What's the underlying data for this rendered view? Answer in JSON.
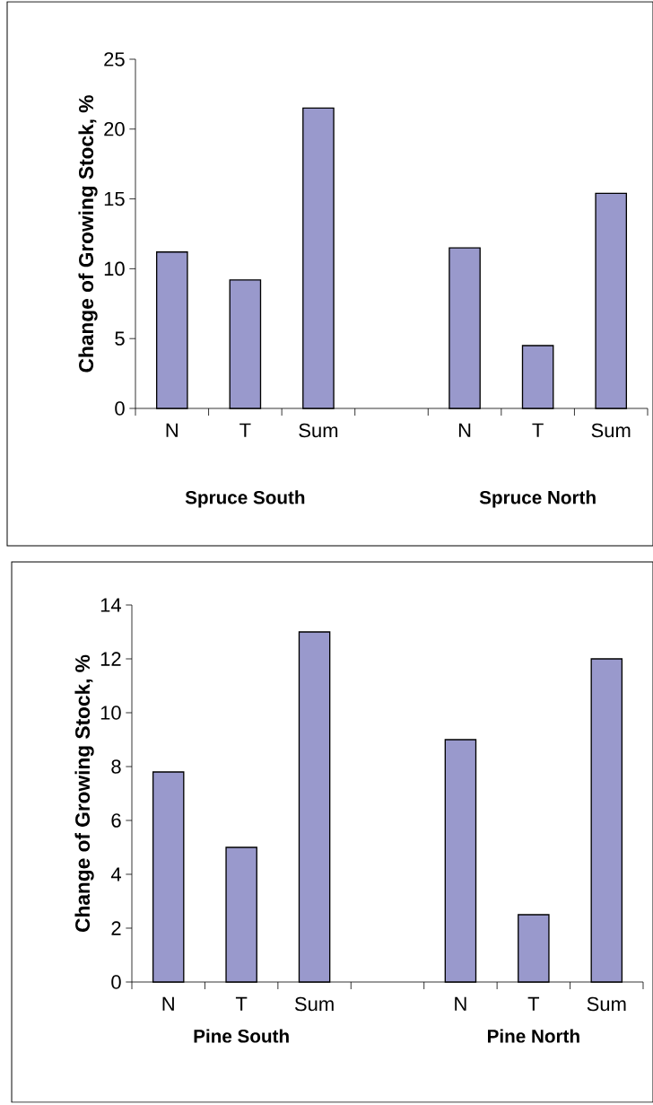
{
  "chart_data": [
    {
      "type": "bar",
      "ylabel": "Change of Growing Stock, %",
      "categories": [
        "N",
        "T",
        "Sum",
        null,
        "N",
        "T",
        "Sum"
      ],
      "values": [
        11.2,
        9.2,
        21.5,
        null,
        11.5,
        4.5,
        15.4
      ],
      "color": "#9999cc",
      "ylim": [
        0,
        25
      ],
      "yticks": [
        0,
        5,
        10,
        15,
        20,
        25
      ],
      "annotations": [
        "Spruce South",
        "Spruce North"
      ]
    },
    {
      "type": "bar",
      "ylabel": "Change of Growing Stock, %",
      "categories": [
        "N",
        "T",
        "Sum",
        null,
        "N",
        "T",
        "Sum"
      ],
      "values": [
        7.8,
        5.0,
        13.0,
        null,
        9.0,
        2.5,
        12.0
      ],
      "color": "#9999cc",
      "ylim": [
        0,
        14
      ],
      "yticks": [
        0,
        2,
        4,
        6,
        8,
        10,
        12,
        14
      ],
      "annotations": [
        "Pine South",
        "Pine North"
      ]
    }
  ]
}
